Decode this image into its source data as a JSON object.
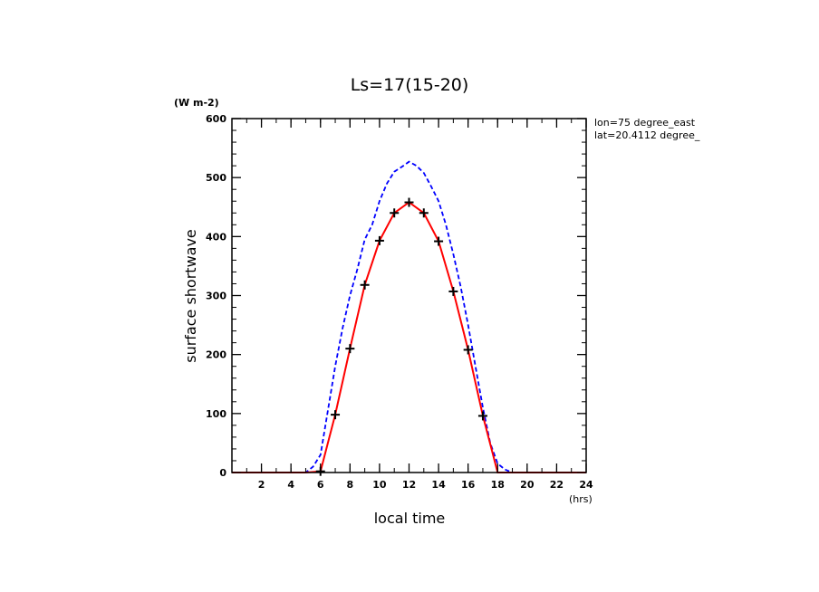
{
  "chart_data": {
    "type": "line",
    "title": "Ls=17(15-20)",
    "xlabel": "local time",
    "xunit": "(hrs)",
    "ylabel": "surface shortwave",
    "yunit": "(W m-2)",
    "annotations": [
      "lon=75 degree_east",
      "lat=20.4112 degree_"
    ],
    "xlim": [
      0,
      24
    ],
    "ylim": [
      0,
      600
    ],
    "xticks": [
      2,
      4,
      6,
      8,
      10,
      12,
      14,
      16,
      18,
      20,
      22,
      24
    ],
    "yticks": [
      0,
      100,
      200,
      300,
      400,
      500,
      600
    ],
    "grid": false,
    "series": [
      {
        "style": "dashed",
        "color": "#0000ff",
        "x": [
          0,
          1,
          2,
          3,
          4,
          5,
          5.5,
          6,
          6.5,
          7,
          7.5,
          8,
          8.5,
          9,
          9.5,
          10,
          10.5,
          11,
          11.5,
          12,
          12.5,
          13,
          13.5,
          14,
          14.5,
          15,
          15.5,
          16,
          16.5,
          17,
          17.5,
          18,
          18.5,
          19,
          20,
          21,
          22,
          23,
          24
        ],
        "y": [
          0,
          0,
          0,
          0,
          0,
          0,
          10,
          30,
          105,
          180,
          245,
          300,
          345,
          395,
          420,
          460,
          490,
          510,
          518,
          527,
          520,
          508,
          485,
          460,
          420,
          370,
          315,
          250,
          180,
          110,
          50,
          15,
          5,
          0,
          0,
          0,
          0,
          0,
          0
        ]
      },
      {
        "style": "solid",
        "color": "#ff0000",
        "markers": "plus",
        "x": [
          0,
          1,
          2,
          3,
          4,
          5,
          6,
          7,
          8,
          9,
          10,
          11,
          12,
          13,
          14,
          15,
          16,
          17,
          18,
          19,
          20,
          21,
          22,
          23,
          24
        ],
        "y": [
          0,
          0,
          0,
          0,
          0,
          0,
          2,
          98,
          210,
          318,
          393,
          440,
          458,
          440,
          392,
          307,
          208,
          96,
          0,
          0,
          0,
          0,
          0,
          0,
          0
        ]
      }
    ]
  }
}
